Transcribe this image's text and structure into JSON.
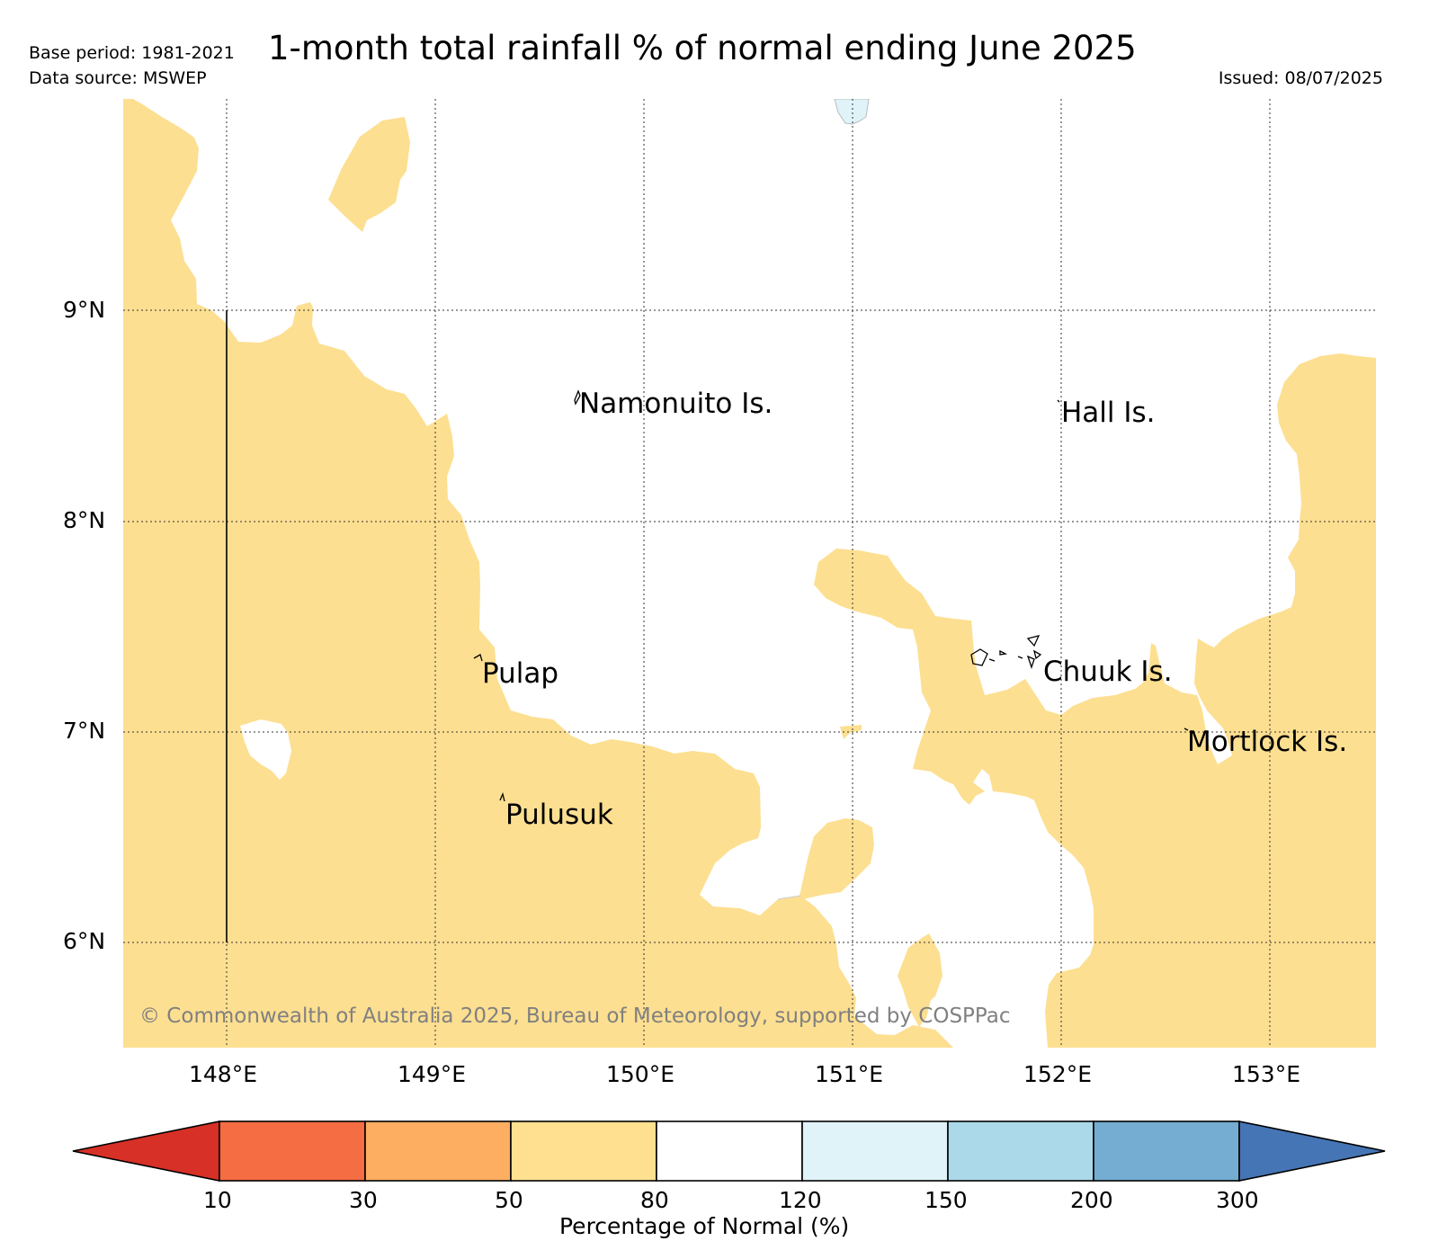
{
  "header": {
    "title": "1-month total rainfall % of normal ending June 2025",
    "base_period": "Base period: 1981-2021",
    "data_source": "Data source: MSWEP",
    "issued": "Issued: 08/07/2025"
  },
  "map": {
    "lon_range": [
      147.5,
      153.5
    ],
    "lat_range": [
      5.5,
      10.0
    ],
    "grid": true,
    "lon_ticks": [
      "148°E",
      "149°E",
      "150°E",
      "151°E",
      "152°E",
      "153°E"
    ],
    "lat_ticks": [
      "9°N",
      "8°N",
      "7°N",
      "6°N"
    ],
    "places": [
      {
        "name": "Namonuito Is."
      },
      {
        "name": "Hall Is."
      },
      {
        "name": "Pulap"
      },
      {
        "name": "Chuuk Is."
      },
      {
        "name": "Mortlock Is."
      },
      {
        "name": "Pulusuk"
      }
    ],
    "dominant_category": "50-80",
    "dominant_color": "#fddf91",
    "copyright": "© Commonwealth of Australia 2025, Bureau of Meteorology, supported by COSPPac"
  },
  "colorbar": {
    "label": "Percentage of Normal (%)",
    "ticks": [
      "10",
      "30",
      "50",
      "80",
      "120",
      "150",
      "200",
      "300"
    ],
    "colors": [
      "#d73027",
      "#f46d43",
      "#fdae61",
      "#fee090",
      "#ffffff",
      "#e0f3f8",
      "#abd9e9",
      "#74add1",
      "#4575b4"
    ]
  }
}
